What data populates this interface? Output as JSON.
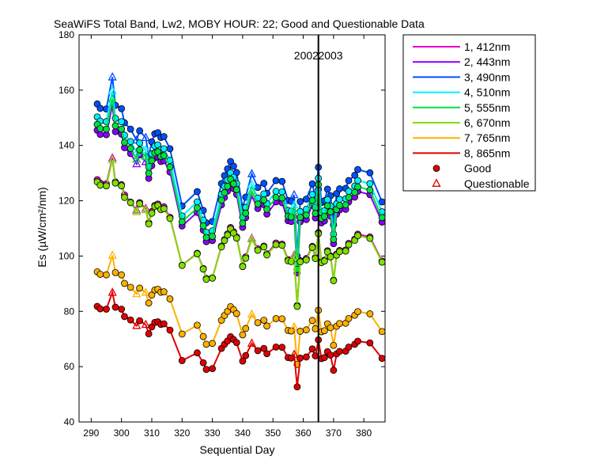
{
  "chart_data": {
    "type": "line",
    "title": "SeaWiFS Total Band,  Lw2, MOBY HOUR: 22;  Good and Questionable Data",
    "xlabel": "Sequential Day",
    "ylabel": "Es (µW/cm²/nm)",
    "xlim": [
      286,
      387
    ],
    "ylim": [
      40,
      180
    ],
    "xticks": [
      290,
      300,
      310,
      320,
      330,
      340,
      350,
      360,
      370,
      380
    ],
    "yticks": [
      40,
      60,
      80,
      100,
      120,
      140,
      160,
      180
    ],
    "grid": false,
    "legend_position": "right, outside plot",
    "annotations": [
      {
        "text": "2002",
        "x": 361
      },
      {
        "text": "2003",
        "x": 369
      }
    ],
    "year_divider_x": 365,
    "x": [
      292,
      293,
      295,
      297,
      298,
      300,
      301,
      303,
      305,
      306,
      308,
      309,
      310,
      311,
      312,
      313,
      314,
      316,
      320,
      325,
      327,
      328,
      330,
      333,
      334,
      335,
      336,
      337,
      338,
      340,
      341,
      343,
      345,
      347,
      348,
      351,
      353,
      355,
      356,
      357,
      358,
      359,
      361,
      363,
      364,
      365,
      366,
      367,
      368,
      369,
      370,
      371,
      372,
      374,
      375,
      377,
      378,
      382,
      386
    ],
    "series": [
      {
        "name": "1, 412nm",
        "color": "#e000c8",
        "values": [
          127.6,
          126.4,
          126.1,
          135.4,
          126.8,
          125.8,
          122.1,
          119.5,
          116.6,
          119.3,
          117.2,
          112.0,
          116.1,
          118.3,
          118.8,
          117.3,
          117.8,
          114.0,
          96.7,
          101.0,
          95.5,
          91.9,
          92.1,
          103.6,
          105.9,
          108.0,
          110.3,
          108.8,
          106.9,
          96.4,
          99.7,
          106.4,
          102.6,
          103.6,
          100.8,
          104.7,
          104.3,
          98.7,
          98.3,
          100.3,
          82.1,
          98.3,
          99.1,
          103.5,
          99.5,
          108.5,
          98.0,
          98.5,
          101.9,
          100.0,
          91.3,
          100.7,
          102.0,
          102.2,
          104.6,
          106.1,
          107.9,
          106.9,
          98.2
        ]
      },
      {
        "name": "2, 443nm",
        "color": "#8a00ff",
        "values": [
          145.5,
          144.0,
          143.9,
          154.6,
          145.0,
          144.1,
          139.2,
          137.1,
          133.3,
          136.6,
          134.1,
          128.1,
          132.7,
          135.5,
          135.9,
          134.2,
          134.5,
          130.4,
          110.9,
          115.8,
          109.4,
          105.2,
          105.6,
          118.5,
          121.2,
          123.5,
          126.0,
          124.4,
          122.3,
          110.4,
          113.9,
          121.8,
          117.2,
          118.6,
          115.2,
          119.6,
          119.3,
          112.8,
          112.5,
          114.7,
          93.9,
          112.4,
          113.2,
          118.4,
          113.8,
          124.1,
          112.0,
          112.7,
          116.6,
          114.4,
          104.5,
          115.2,
          116.7,
          116.9,
          119.6,
          121.3,
          123.4,
          122.2,
          112.3
        ]
      },
      {
        "name": "3, 490nm",
        "color": "#0050ff",
        "values": [
          155.0,
          153.4,
          153.2,
          164.7,
          154.5,
          153.3,
          148.2,
          145.9,
          141.9,
          145.3,
          142.8,
          136.4,
          141.3,
          144.2,
          144.6,
          142.9,
          143.2,
          138.8,
          118.1,
          123.3,
          116.5,
          112.0,
          112.5,
          126.2,
          129.1,
          131.5,
          134.2,
          132.5,
          130.2,
          117.6,
          121.3,
          129.7,
          124.8,
          126.3,
          122.7,
          127.3,
          127.0,
          120.1,
          119.8,
          122.1,
          100.0,
          119.7,
          120.6,
          126.1,
          121.2,
          132.1,
          119.3,
          120.0,
          124.2,
          121.8,
          111.3,
          122.6,
          124.3,
          124.5,
          127.3,
          129.2,
          131.3,
          130.1,
          119.6
        ]
      },
      {
        "name": "4, 510nm",
        "color": "#00f0ff",
        "values": [
          150.3,
          148.8,
          148.6,
          159.7,
          149.8,
          148.6,
          143.7,
          141.4,
          137.5,
          140.9,
          138.4,
          132.3,
          137.0,
          139.8,
          140.2,
          138.5,
          138.8,
          134.6,
          114.5,
          119.6,
          113.0,
          108.6,
          109.1,
          122.4,
          125.2,
          127.5,
          130.1,
          128.5,
          126.2,
          114.0,
          117.6,
          125.8,
          121.0,
          122.5,
          119.0,
          123.4,
          123.2,
          116.5,
          116.2,
          118.4,
          97.0,
          116.1,
          116.9,
          122.3,
          117.5,
          128.1,
          115.7,
          116.4,
          120.4,
          118.1,
          107.9,
          118.9,
          120.5,
          120.7,
          123.4,
          125.3,
          127.3,
          126.2,
          116.0
        ]
      },
      {
        "name": "5, 555nm",
        "color": "#00e040",
        "values": [
          147.6,
          146.1,
          145.9,
          156.8,
          147.1,
          145.9,
          141.1,
          138.9,
          135.0,
          138.4,
          135.9,
          129.9,
          134.5,
          137.3,
          137.7,
          136.0,
          136.3,
          132.2,
          112.4,
          117.4,
          110.9,
          106.7,
          107.1,
          120.2,
          122.9,
          125.2,
          127.8,
          126.1,
          124.0,
          111.9,
          115.5,
          123.5,
          118.8,
          120.3,
          116.9,
          121.2,
          121.0,
          114.4,
          114.1,
          116.3,
          95.2,
          114.0,
          114.8,
          120.1,
          115.4,
          125.8,
          113.6,
          114.3,
          118.2,
          116.0,
          106.0,
          116.8,
          118.3,
          118.5,
          121.2,
          123.0,
          125.0,
          123.9,
          113.9
        ]
      },
      {
        "name": "6, 670nm",
        "color": "#80e000",
        "values": [
          126.8,
          125.6,
          125.4,
          134.7,
          126.4,
          125.4,
          121.2,
          119.3,
          116.0,
          118.9,
          116.7,
          111.6,
          115.5,
          117.9,
          118.3,
          116.8,
          117.1,
          113.6,
          96.6,
          100.8,
          95.3,
          91.6,
          92.0,
          103.3,
          105.6,
          107.6,
          109.8,
          108.3,
          106.5,
          96.2,
          99.2,
          106.1,
          102.1,
          103.3,
          100.4,
          104.1,
          103.9,
          98.3,
          98.0,
          99.9,
          81.8,
          97.9,
          98.6,
          103.1,
          99.1,
          108.1,
          97.6,
          98.2,
          101.5,
          99.7,
          91.1,
          100.3,
          101.6,
          101.8,
          104.1,
          105.7,
          107.4,
          106.4,
          97.8
        ]
      },
      {
        "name": "7, 765nm",
        "color": "#ffb000",
        "values": [
          94.3,
          93.4,
          93.2,
          100.2,
          94.0,
          93.2,
          90.1,
          88.7,
          86.3,
          88.4,
          86.8,
          83.0,
          85.9,
          87.7,
          88.0,
          86.9,
          87.1,
          84.5,
          71.8,
          75.0,
          70.9,
          68.1,
          68.4,
          76.8,
          78.5,
          80.0,
          81.7,
          80.6,
          79.2,
          71.5,
          73.8,
          78.9,
          75.9,
          76.8,
          74.7,
          77.4,
          77.3,
          73.1,
          72.9,
          74.3,
          60.8,
          72.8,
          73.3,
          76.7,
          73.7,
          80.4,
          72.6,
          73.0,
          75.5,
          74.1,
          67.7,
          74.6,
          75.6,
          75.7,
          77.4,
          78.6,
          79.9,
          79.1,
          72.7
        ]
      },
      {
        "name": "8, 865nm",
        "color": "#e00000",
        "values": [
          81.8,
          80.9,
          80.8,
          86.8,
          81.5,
          80.8,
          78.1,
          76.9,
          74.8,
          76.6,
          75.2,
          71.9,
          74.4,
          76.0,
          76.2,
          75.3,
          75.5,
          73.2,
          62.2,
          65.0,
          61.4,
          59.0,
          59.3,
          66.6,
          68.1,
          69.3,
          70.8,
          69.8,
          68.7,
          62.0,
          64.0,
          68.4,
          65.8,
          66.6,
          64.7,
          67.1,
          67.0,
          63.3,
          63.1,
          64.4,
          52.7,
          63.1,
          63.5,
          66.4,
          63.9,
          69.7,
          62.9,
          63.3,
          65.4,
          64.2,
          58.7,
          64.6,
          65.5,
          65.6,
          67.1,
          68.1,
          69.2,
          68.6,
          63.0
        ]
      }
    ],
    "questionable_days": [
      297,
      305,
      308,
      343,
      357
    ],
    "marker_legend": [
      {
        "label": "Good",
        "marker": "filled-circle",
        "color": "#e00000"
      },
      {
        "label": "Questionable",
        "marker": "open-triangle",
        "color": "#e00000"
      }
    ]
  }
}
